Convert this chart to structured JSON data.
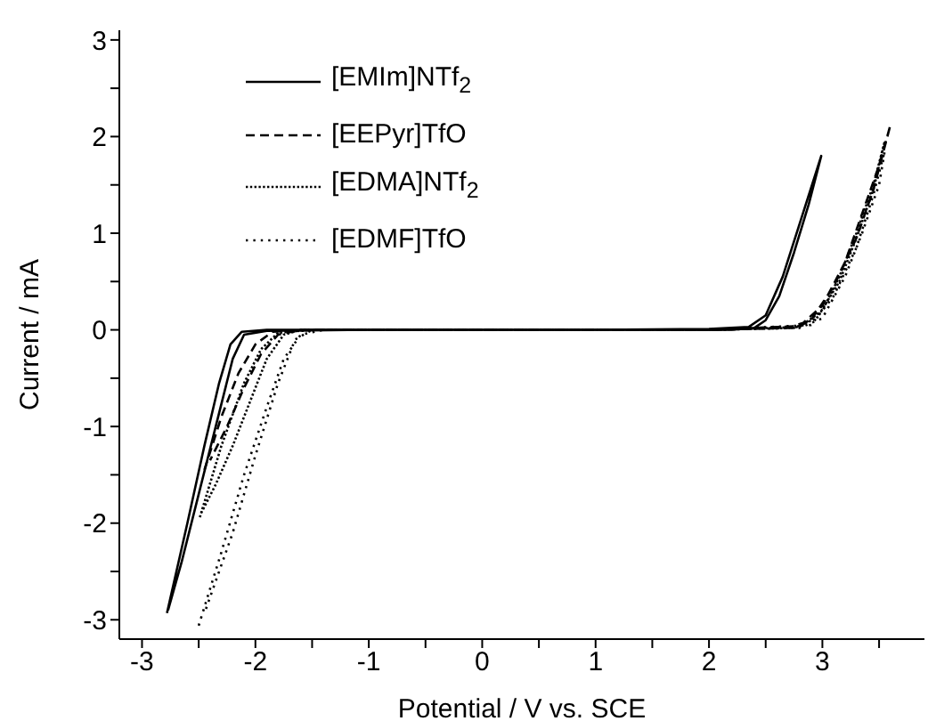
{
  "chart_data": {
    "type": "line",
    "xlabel": "Potential / V vs. SCE",
    "ylabel": "Current / mA",
    "xlim": [
      -3.2,
      3.9
    ],
    "ylim": [
      -3.2,
      3.1
    ],
    "xticks": [
      -3,
      {
        "value": -2.5,
        "label": null
      },
      -2,
      {
        "value": -1.5,
        "label": null
      },
      -1,
      {
        "value": -0.5,
        "label": null
      },
      0,
      {
        "value": 0.5,
        "label": null
      },
      1,
      {
        "value": 1.5,
        "label": null
      },
      2,
      {
        "value": 2.5,
        "label": null
      },
      3,
      {
        "value": 3.5,
        "label": null
      }
    ],
    "yticks": [
      -3,
      {
        "value": -2.5,
        "label": null
      },
      -2,
      {
        "value": -1.5,
        "label": null
      },
      -1,
      {
        "value": -0.5,
        "label": null
      },
      0,
      {
        "value": 0.5,
        "label": null
      },
      1,
      {
        "value": 1.5,
        "label": null
      },
      2,
      {
        "value": 2.5,
        "label": null
      },
      3
    ],
    "grid": false,
    "legend": "top",
    "marker": "none",
    "series": [
      {
        "name": "[EMIm]NTf$_{2}$",
        "color": "#000000",
        "line_style": "solid",
        "x": [
          -2.78,
          -2.6,
          -2.45,
          -2.32,
          -2.22,
          -2.12,
          -1.9,
          -1,
          0,
          1,
          2,
          2.35,
          2.5,
          2.65,
          2.8,
          2.99,
          2.88,
          2.75,
          2.62,
          2.5,
          2.4,
          2.2,
          1,
          0,
          -1,
          -1.9,
          -2.1,
          -2.2,
          -2.35,
          -2.5,
          -2.65,
          -2.77
        ],
        "values": [
          -2.93,
          -2.0,
          -1.2,
          -0.55,
          -0.15,
          -0.02,
          0,
          0,
          0,
          0,
          0.01,
          0.03,
          0.15,
          0.55,
          1.1,
          1.8,
          1.3,
          0.8,
          0.35,
          0.1,
          0.02,
          0,
          0,
          0,
          0,
          -0.01,
          -0.05,
          -0.3,
          -1.0,
          -1.7,
          -2.4,
          -2.9
        ]
      },
      {
        "name": "[EEPyr]TfO",
        "color": "#000000",
        "line_style": "dashed",
        "x": [
          -2.45,
          -2.3,
          -2.15,
          -2.0,
          -1.85,
          -1.5,
          0,
          2,
          2.7,
          2.9,
          3.1,
          3.3,
          3.45,
          3.6,
          3.5,
          3.35,
          3.2,
          3.0,
          2.8,
          2,
          0,
          -1.6,
          -1.8,
          -1.95,
          -2.1,
          -2.25,
          -2.4
        ],
        "values": [
          -1.45,
          -0.9,
          -0.45,
          -0.15,
          -0.02,
          0,
          0,
          0,
          0.02,
          0.1,
          0.45,
          0.95,
          1.45,
          2.12,
          1.7,
          1.2,
          0.7,
          0.25,
          0.04,
          0,
          0,
          0,
          -0.05,
          -0.25,
          -0.6,
          -1.0,
          -1.35
        ]
      },
      {
        "name": "[EDMA]NTf$_{2}$",
        "color": "#000000",
        "line_style": "dotted",
        "x": [
          -2.49,
          -2.3,
          -2.1,
          -1.95,
          -1.8,
          -1.5,
          0,
          2,
          2.75,
          2.95,
          3.15,
          3.3,
          3.45,
          3.55,
          3.45,
          3.3,
          3.15,
          3.0,
          2.8,
          2,
          0,
          -1.6,
          -1.75,
          -1.9,
          -2.05,
          -2.2,
          -2.35,
          -2.48
        ],
        "values": [
          -1.94,
          -1.2,
          -0.55,
          -0.2,
          -0.03,
          0,
          0,
          0,
          0.02,
          0.12,
          0.5,
          0.95,
          1.45,
          1.95,
          1.5,
          1.0,
          0.55,
          0.2,
          0.03,
          0,
          0,
          0,
          -0.05,
          -0.3,
          -0.75,
          -1.2,
          -1.6,
          -1.9
        ]
      },
      {
        "name": "[EDMF]TfO",
        "color": "#000000",
        "line_style": "dotted",
        "x": [
          -2.5,
          -2.3,
          -2.1,
          -1.9,
          -1.75,
          -1.6,
          -1.4,
          0,
          2,
          2.8,
          3.0,
          3.2,
          3.35,
          3.5,
          3.55,
          3.45,
          3.3,
          3.1,
          2.9,
          2,
          0,
          -1.5,
          -1.65,
          -1.8,
          -2.0,
          -2.2,
          -2.44
        ],
        "values": [
          -3.06,
          -2.3,
          -1.5,
          -0.8,
          -0.3,
          -0.05,
          0,
          0,
          0,
          0.02,
          0.12,
          0.55,
          1.0,
          1.5,
          1.85,
          1.4,
          0.85,
          0.35,
          0.05,
          0,
          0,
          0,
          -0.1,
          -0.55,
          -1.3,
          -2.1,
          -2.9
        ]
      }
    ]
  }
}
